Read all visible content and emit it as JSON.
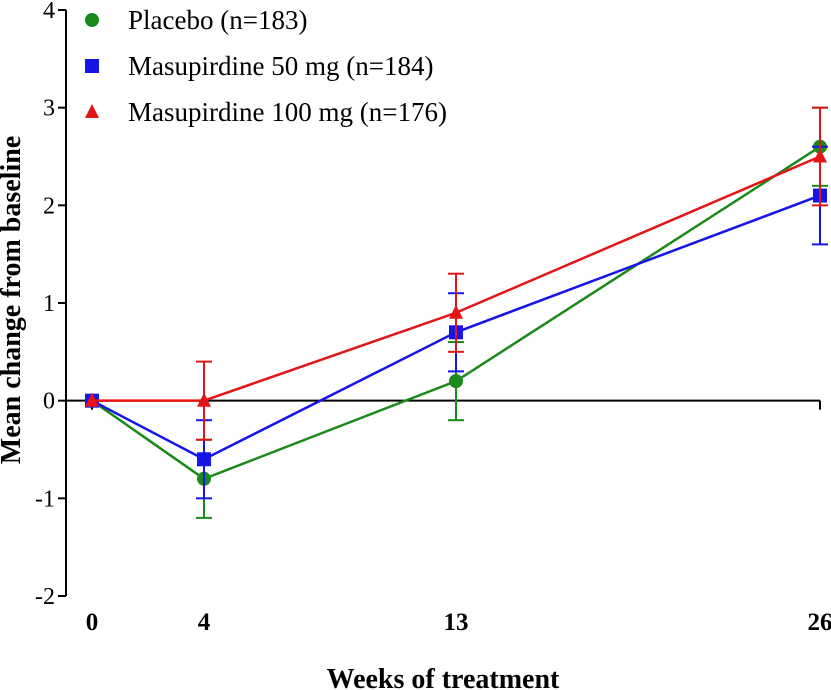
{
  "chart_data": {
    "type": "line",
    "xlabel": "Weeks of treatment",
    "ylabel": "Mean change from baseline",
    "x": [
      0,
      4,
      13,
      26
    ],
    "x_tick_labels": [
      "0",
      "4",
      "13",
      "26"
    ],
    "ylim": [
      -2,
      4
    ],
    "y_ticks": [
      -2,
      -1,
      0,
      1,
      2,
      3,
      4
    ],
    "y_tick_labels": [
      "-2",
      "-1",
      "0",
      "1",
      "2",
      "3",
      "4"
    ],
    "grid": false,
    "legend_position": "top-left",
    "series": [
      {
        "name": "Placebo (n=183)",
        "color": "#1a8a1a",
        "marker": "circle",
        "values": [
          0,
          -0.8,
          0.2,
          2.6
        ],
        "error": [
          0,
          0.4,
          0.4,
          0.4
        ]
      },
      {
        "name": "Masupirdine 50 mg (n=184)",
        "color": "#1515e6",
        "marker": "square",
        "values": [
          0,
          -0.6,
          0.7,
          2.1
        ],
        "error": [
          0,
          0.4,
          0.4,
          0.5
        ]
      },
      {
        "name": "Masupirdine 100 mg (n=176)",
        "color": "#e31515",
        "marker": "triangle",
        "values": [
          0,
          0,
          0.9,
          2.5
        ],
        "error": [
          0,
          0.4,
          0.4,
          0.5
        ]
      }
    ]
  }
}
